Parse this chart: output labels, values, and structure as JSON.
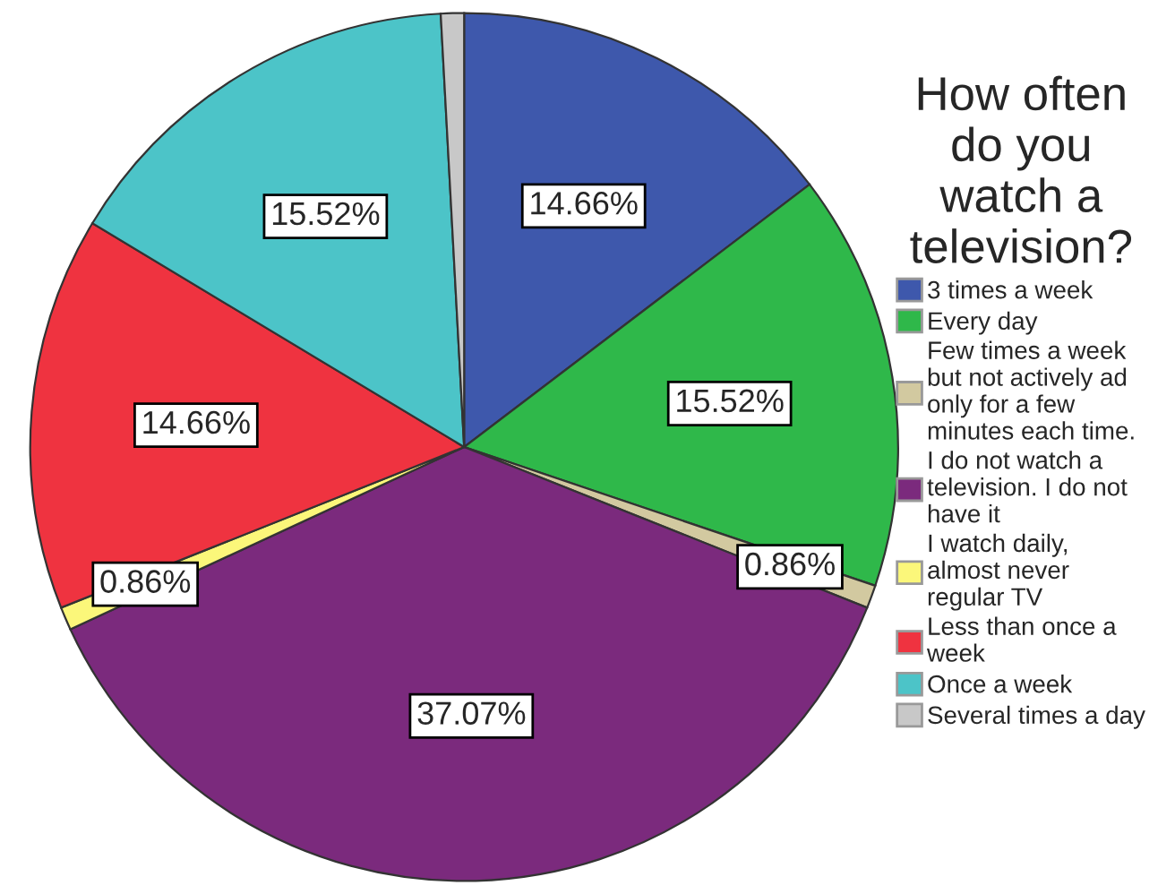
{
  "chart_data": {
    "type": "pie",
    "legend_title": "How often\ndo you\nwatch a\ntelevision?",
    "categories": [
      "3 times a week",
      "Every day",
      "Few times a week\nbut not actively ad\nonly for a few\nminutes each time.",
      "I do not watch a\ntelevision. I do not\nhave it",
      "I watch daily,\nalmost never\nregular TV",
      "Less than once a\nweek",
      "Once a week",
      "Several times a day"
    ],
    "values": [
      14.66,
      15.52,
      0.86,
      37.07,
      0.86,
      14.66,
      15.52,
      0.86
    ],
    "value_labels": [
      "14.66%",
      "15.52%",
      "0.86%",
      "37.07%",
      "0.86%",
      "14.66%",
      "15.52%",
      null
    ],
    "colors": [
      "#3e58ac",
      "#2fb84a",
      "#d2c9a0",
      "#7b2a7d",
      "#fbf77a",
      "#ef3340",
      "#4cc4c8",
      "#c8c8c8"
    ],
    "legend": "right"
  }
}
